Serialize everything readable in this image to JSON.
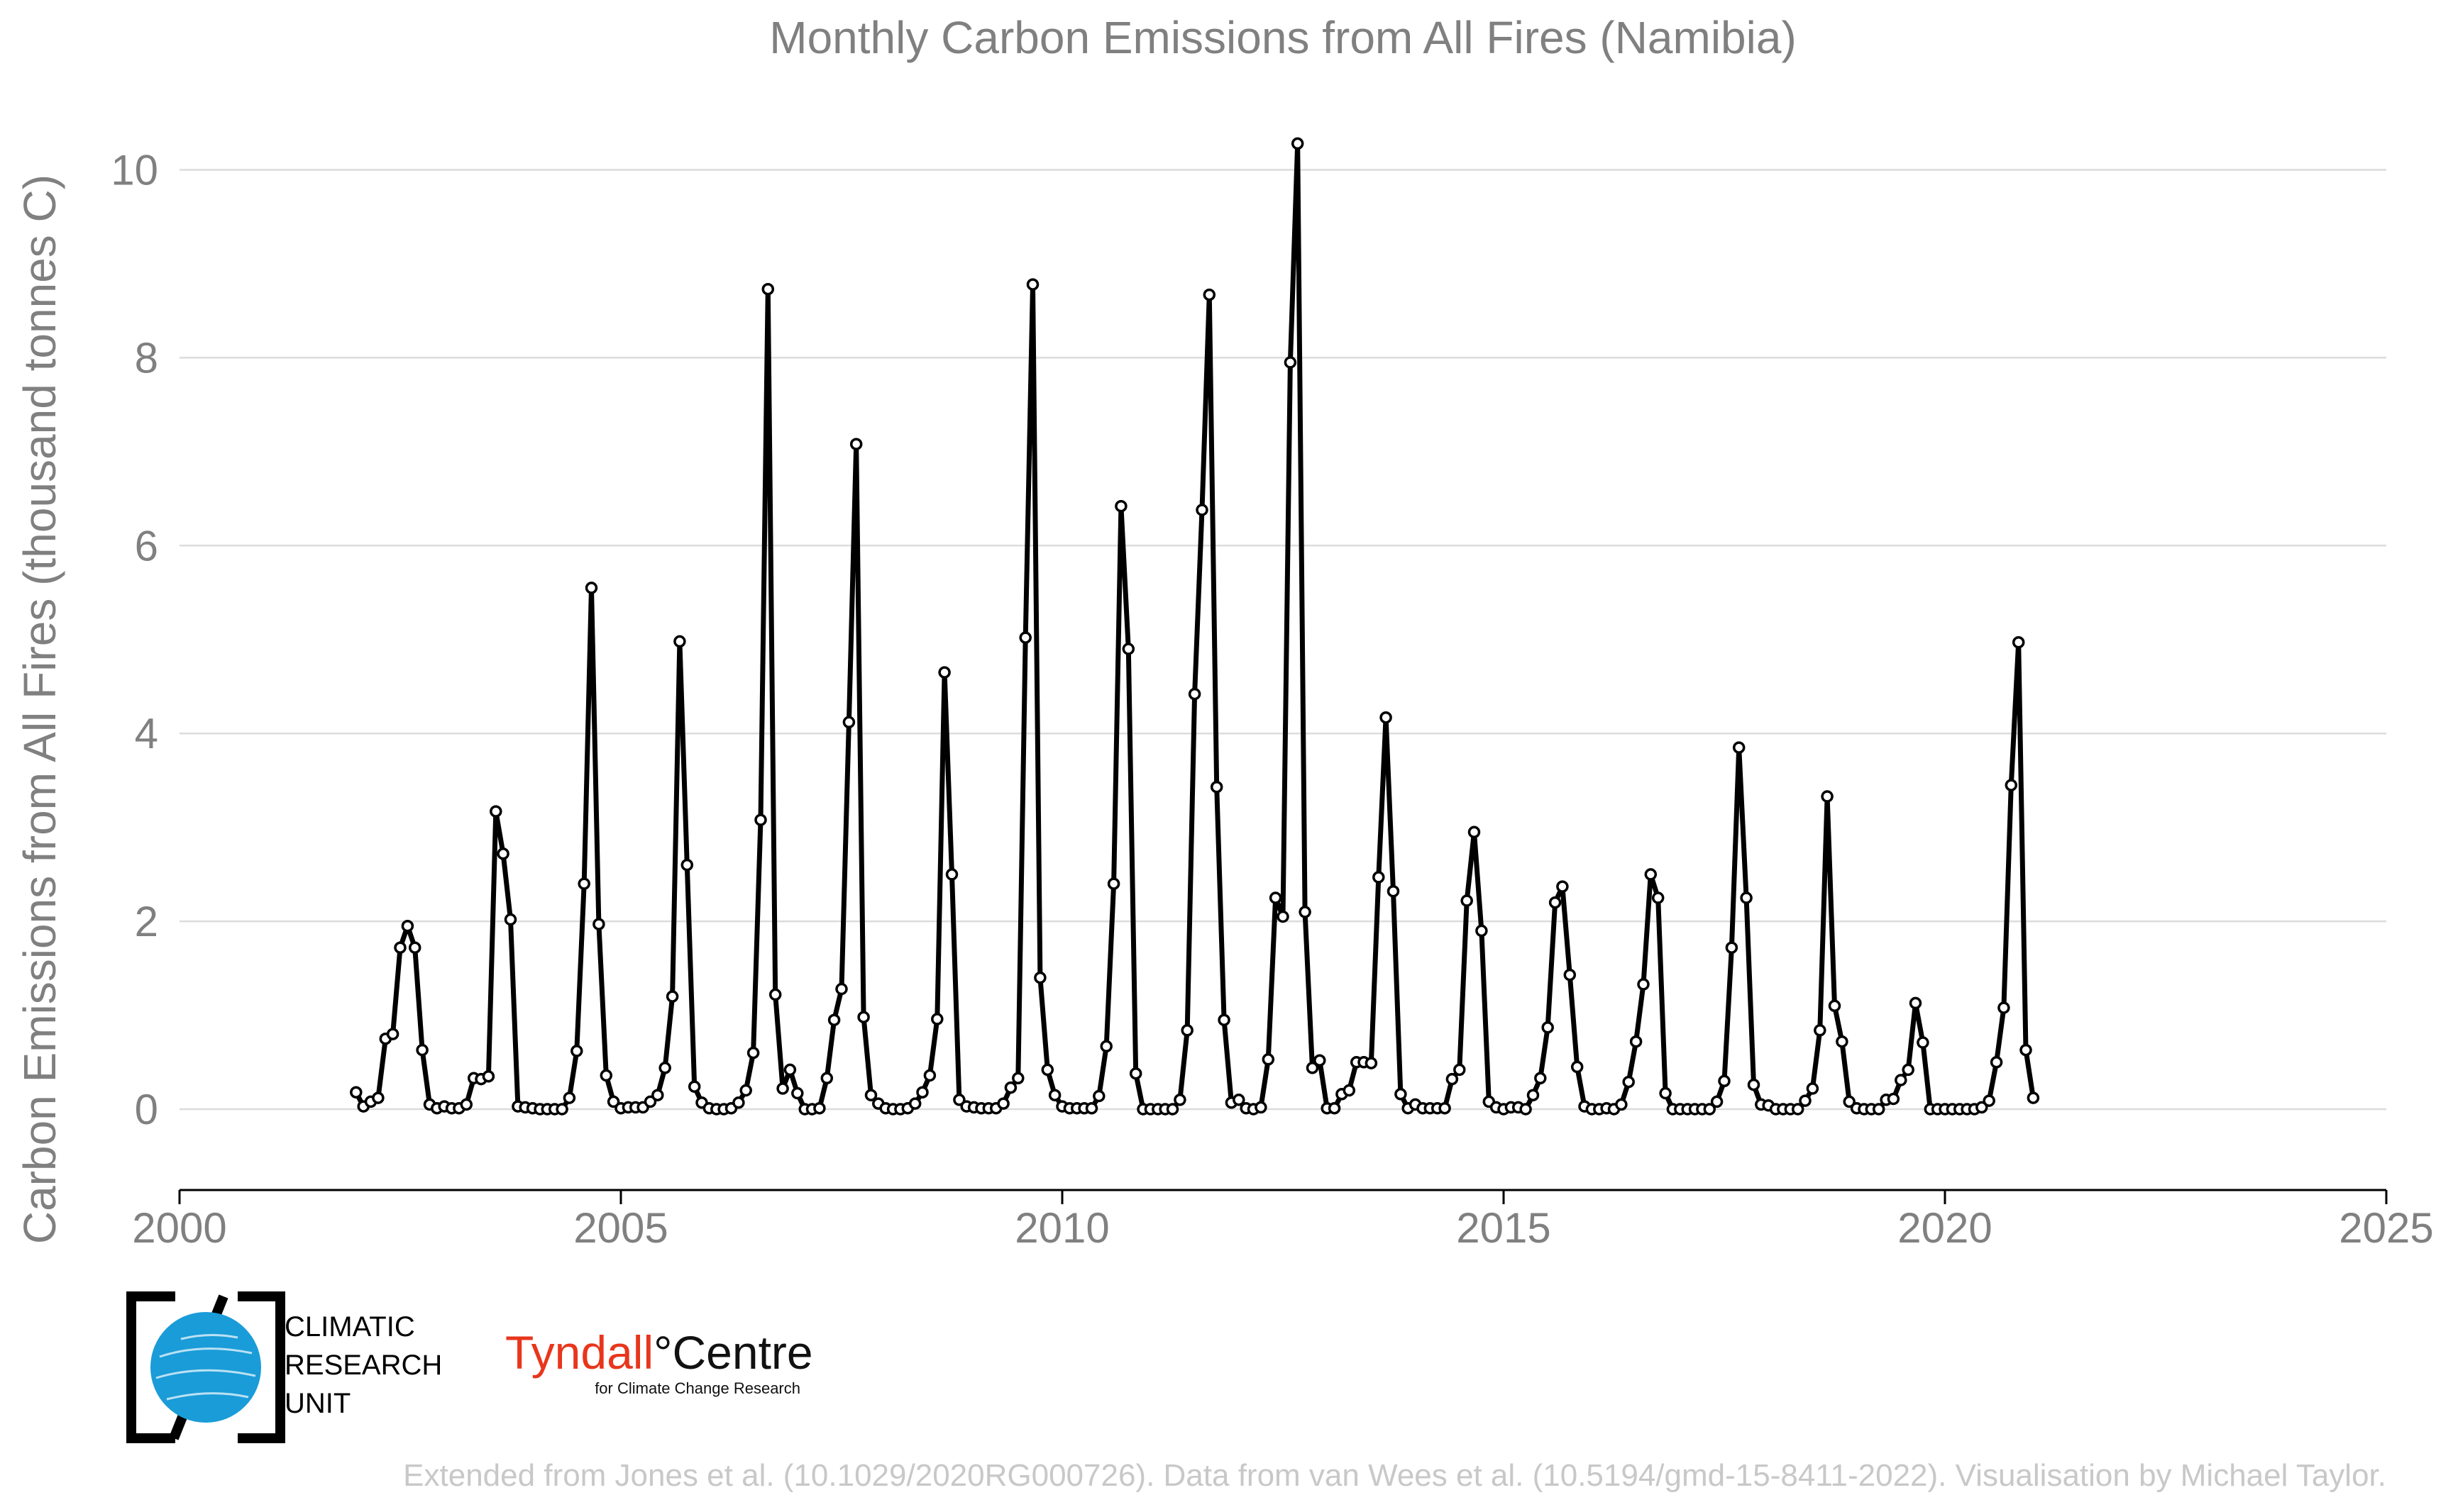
{
  "chart_data": {
    "type": "line",
    "title": "Monthly Carbon Emissions from All Fires (Namibia)",
    "xlabel": "",
    "ylabel": "Carbon Emissions from All Fires (thousand tonnes C)",
    "xlim": [
      2000,
      2025
    ],
    "ylim": [
      -0.8,
      10.6
    ],
    "x_ticks": [
      "2000",
      "2005",
      "2010",
      "2015",
      "2020",
      "2025"
    ],
    "y_ticks": [
      "0",
      "2",
      "4",
      "6",
      "8",
      "10"
    ],
    "grid": "horizontal",
    "legend": "none",
    "series_color": "#000000",
    "start_year": 2002,
    "series": [
      {
        "name": "",
        "values": [
          0.18,
          0.03,
          0.08,
          0.12,
          0.75,
          0.8,
          1.72,
          1.95,
          1.72,
          0.63,
          0.05,
          0.01,
          0.03,
          0.01,
          0.01,
          0.05,
          0.33,
          0.32,
          0.35,
          3.17,
          2.72,
          2.02,
          0.03,
          0.02,
          0.01,
          0.0,
          0.0,
          0.0,
          0.0,
          0.12,
          0.62,
          2.4,
          5.55,
          1.97,
          0.36,
          0.08,
          0.01,
          0.02,
          0.02,
          0.02,
          0.08,
          0.15,
          0.44,
          1.2,
          4.98,
          2.6,
          0.24,
          0.07,
          0.01,
          0.0,
          0.0,
          0.01,
          0.07,
          0.2,
          0.6,
          3.08,
          8.73,
          1.22,
          0.22,
          0.42,
          0.17,
          0.0,
          0.0,
          0.01,
          0.33,
          0.95,
          1.28,
          4.12,
          7.08,
          0.98,
          0.15,
          0.06,
          0.01,
          0.0,
          0.0,
          0.01,
          0.06,
          0.18,
          0.36,
          0.96,
          4.65,
          2.5,
          0.1,
          0.03,
          0.02,
          0.01,
          0.01,
          0.01,
          0.06,
          0.23,
          0.33,
          5.02,
          8.78,
          1.4,
          0.42,
          0.15,
          0.03,
          0.01,
          0.01,
          0.01,
          0.01,
          0.14,
          0.67,
          2.4,
          6.42,
          4.9,
          0.38,
          0.0,
          0.0,
          0.0,
          0.0,
          0.0,
          0.1,
          0.84,
          4.42,
          6.38,
          8.67,
          3.43,
          0.95,
          0.07,
          0.1,
          0.01,
          0.0,
          0.02,
          0.53,
          2.25,
          2.05,
          7.95,
          10.28,
          2.1,
          0.44,
          0.52,
          0.01,
          0.01,
          0.16,
          0.2,
          0.5,
          0.5,
          0.49,
          2.47,
          4.17,
          2.32,
          0.16,
          0.01,
          0.05,
          0.01,
          0.01,
          0.01,
          0.01,
          0.32,
          0.42,
          2.22,
          2.95,
          1.9,
          0.08,
          0.02,
          0.0,
          0.02,
          0.02,
          0.0,
          0.15,
          0.33,
          0.87,
          2.2,
          2.37,
          1.43,
          0.45,
          0.03,
          0.0,
          0.0,
          0.01,
          0.0,
          0.05,
          0.29,
          0.72,
          1.33,
          2.5,
          2.25,
          0.17,
          0.0,
          0.0,
          0.0,
          0.0,
          0.0,
          0.0,
          0.08,
          0.3,
          1.72,
          3.85,
          2.25,
          0.26,
          0.05,
          0.04,
          0.0,
          0.0,
          0.0,
          0.0,
          0.09,
          0.22,
          0.84,
          3.33,
          1.1,
          0.72,
          0.08,
          0.01,
          0.0,
          0.0,
          0.0,
          0.1,
          0.11,
          0.31,
          0.42,
          1.13,
          0.71,
          0.0,
          0.0,
          0.0,
          0.0,
          0.0,
          0.0,
          0.0,
          0.02,
          0.09,
          0.5,
          1.08,
          3.45,
          4.97,
          0.63,
          0.12
        ]
      }
    ]
  },
  "logos": {
    "cru_line1": "CLIMATIC",
    "cru_line2": "RESEARCH",
    "cru_line3": "UNIT",
    "tyndall_name": "Tyndall",
    "tyndall_centre": "°Centre",
    "tyndall_sub": "for Climate Change Research",
    "cru_globe_color": "#1a9cd8",
    "tyndall_color": "#e8361c"
  },
  "credit": "Extended from Jones et al. (10.1029/2020RG000726). Data from van Wees et al. (10.5194/gmd-15-8411-2022). Visualisation by Michael Taylor."
}
